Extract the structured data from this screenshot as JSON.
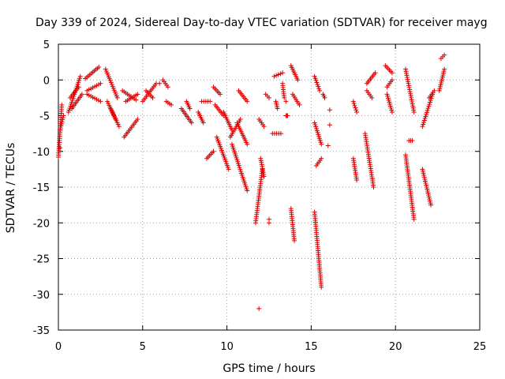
{
  "chart_data": {
    "type": "scatter",
    "title": "Day 339 of 2024, Sidereal Day-to-day VTEC variation (SDTVAR) for receiver mayg",
    "xlabel": "GPS time / hours",
    "ylabel": "SDTVAR / TECUs",
    "xlim": [
      0,
      25
    ],
    "ylim": [
      -35,
      5
    ],
    "xticks": [
      0,
      5,
      10,
      15,
      20,
      25
    ],
    "yticks": [
      5,
      0,
      -5,
      -10,
      -15,
      -20,
      -25,
      -30,
      -35
    ],
    "x_tick_labels": [
      "0",
      "5",
      "10",
      "15",
      "20",
      "25"
    ],
    "y_tick_labels": [
      "5",
      "0",
      "-5",
      "-10",
      "-15",
      "-20",
      "-25",
      "-30",
      "-35"
    ],
    "grid": true,
    "marker": "+",
    "color": "#e00000",
    "tracks": [
      {
        "x0": 0.0,
        "y0": -10.8,
        "x1": 0.2,
        "y1": -3.5
      },
      {
        "x0": 0.1,
        "y0": -7.0,
        "x1": 0.3,
        "y1": -5.0
      },
      {
        "x0": 0.6,
        "y0": -4.5,
        "x1": 1.3,
        "y1": 0.5
      },
      {
        "x0": 0.7,
        "y0": -2.5,
        "x1": 1.2,
        "y1": -1.0
      },
      {
        "x0": 0.8,
        "y0": -4.0,
        "x1": 1.4,
        "y1": -2.0
      },
      {
        "x0": 1.6,
        "y0": 0.2,
        "x1": 2.4,
        "y1": 1.8
      },
      {
        "x0": 1.7,
        "y0": -1.5,
        "x1": 2.5,
        "y1": -0.5
      },
      {
        "x0": 1.7,
        "y0": -2.0,
        "x1": 2.5,
        "y1": -3.0
      },
      {
        "x0": 2.8,
        "y0": 1.5,
        "x1": 3.5,
        "y1": -2.5
      },
      {
        "x0": 2.9,
        "y0": -3.0,
        "x1": 3.6,
        "y1": -6.5
      },
      {
        "x0": 3.1,
        "y0": -4.0,
        "x1": 3.4,
        "y1": -5.5
      },
      {
        "x0": 3.8,
        "y0": -1.5,
        "x1": 4.6,
        "y1": -2.8
      },
      {
        "x0": 4.0,
        "y0": -3.0,
        "x1": 4.7,
        "y1": -2.0
      },
      {
        "x0": 3.9,
        "y0": -8.0,
        "x1": 4.7,
        "y1": -5.5
      },
      {
        "x0": 5.0,
        "y0": -3.0,
        "x1": 5.8,
        "y1": -0.5
      },
      {
        "x0": 5.2,
        "y0": -1.5,
        "x1": 5.6,
        "y1": -2.5
      },
      {
        "x0": 6.2,
        "y0": 0.0,
        "x1": 6.5,
        "y1": -1.0
      },
      {
        "x0": 6.4,
        "y0": -3.0,
        "x1": 6.7,
        "y1": -3.5
      },
      {
        "x0": 7.3,
        "y0": -4.0,
        "x1": 7.9,
        "y1": -6.0
      },
      {
        "x0": 7.6,
        "y0": -3.0,
        "x1": 7.8,
        "y1": -4.0
      },
      {
        "x0": 8.3,
        "y0": -4.5,
        "x1": 8.6,
        "y1": -6.0
      },
      {
        "x0": 8.5,
        "y0": -3.0,
        "x1": 9.0,
        "y1": -3.0
      },
      {
        "x0": 8.8,
        "y0": -11.0,
        "x1": 9.2,
        "y1": -10.0
      },
      {
        "x0": 9.2,
        "y0": -1.0,
        "x1": 9.6,
        "y1": -2.0
      },
      {
        "x0": 9.3,
        "y0": -3.5,
        "x1": 9.8,
        "y1": -5.0
      },
      {
        "x0": 9.4,
        "y0": -8.0,
        "x1": 10.1,
        "y1": -12.5
      },
      {
        "x0": 9.8,
        "y0": -4.5,
        "x1": 10.3,
        "y1": -7.0
      },
      {
        "x0": 10.2,
        "y0": -8.0,
        "x1": 10.8,
        "y1": -5.5
      },
      {
        "x0": 10.3,
        "y0": -9.0,
        "x1": 11.2,
        "y1": -15.5
      },
      {
        "x0": 10.6,
        "y0": -6.0,
        "x1": 11.2,
        "y1": -9.0
      },
      {
        "x0": 10.7,
        "y0": -1.5,
        "x1": 11.2,
        "y1": -3.0
      },
      {
        "x0": 11.9,
        "y0": -5.5,
        "x1": 12.2,
        "y1": -6.5
      },
      {
        "x0": 11.7,
        "y0": -20.0,
        "x1": 12.1,
        "y1": -12.5
      },
      {
        "x0": 12.0,
        "y0": -11.0,
        "x1": 12.2,
        "y1": -13.5
      },
      {
        "x0": 12.3,
        "y0": -2.0,
        "x1": 12.5,
        "y1": -2.5
      },
      {
        "x0": 12.8,
        "y0": 0.5,
        "x1": 13.3,
        "y1": 1.0
      },
      {
        "x0": 12.7,
        "y0": -7.5,
        "x1": 13.2,
        "y1": -7.5
      },
      {
        "x0": 12.9,
        "y0": -3.0,
        "x1": 13.0,
        "y1": -4.0
      },
      {
        "x0": 13.3,
        "y0": -0.5,
        "x1": 13.4,
        "y1": -2.5
      },
      {
        "x0": 13.8,
        "y0": 2.0,
        "x1": 14.2,
        "y1": 0.0
      },
      {
        "x0": 13.9,
        "y0": -2.0,
        "x1": 14.3,
        "y1": -3.5
      },
      {
        "x0": 13.8,
        "y0": -18.0,
        "x1": 14.0,
        "y1": -22.5
      },
      {
        "x0": 13.5,
        "y0": -5.0,
        "x1": 13.6,
        "y1": -5.0
      },
      {
        "x0": 15.2,
        "y0": 0.5,
        "x1": 15.5,
        "y1": -1.5
      },
      {
        "x0": 15.2,
        "y0": -6.0,
        "x1": 15.6,
        "y1": -9.0
      },
      {
        "x0": 15.2,
        "y0": -18.5,
        "x1": 15.6,
        "y1": -29.0
      },
      {
        "x0": 15.3,
        "y0": -12.0,
        "x1": 15.6,
        "y1": -11.0
      },
      {
        "x0": 15.7,
        "y0": -2.0,
        "x1": 15.8,
        "y1": -2.5
      },
      {
        "x0": 17.5,
        "y0": -3.0,
        "x1": 17.7,
        "y1": -4.5
      },
      {
        "x0": 17.5,
        "y0": -11.0,
        "x1": 17.7,
        "y1": -14.0
      },
      {
        "x0": 18.2,
        "y0": -7.5,
        "x1": 18.7,
        "y1": -15.0
      },
      {
        "x0": 18.3,
        "y0": -1.5,
        "x1": 18.6,
        "y1": -2.5
      },
      {
        "x0": 18.3,
        "y0": -0.5,
        "x1": 18.8,
        "y1": 1.0
      },
      {
        "x0": 19.4,
        "y0": 2.0,
        "x1": 19.8,
        "y1": 1.0
      },
      {
        "x0": 19.5,
        "y0": -1.0,
        "x1": 19.8,
        "y1": 0.0
      },
      {
        "x0": 19.5,
        "y0": -2.0,
        "x1": 19.8,
        "y1": -4.5
      },
      {
        "x0": 20.6,
        "y0": -10.5,
        "x1": 21.1,
        "y1": -19.5
      },
      {
        "x0": 20.6,
        "y0": 1.5,
        "x1": 21.1,
        "y1": -4.5
      },
      {
        "x0": 20.8,
        "y0": -8.5,
        "x1": 21.0,
        "y1": -8.5
      },
      {
        "x0": 21.6,
        "y0": -6.5,
        "x1": 22.2,
        "y1": -2.0
      },
      {
        "x0": 21.6,
        "y0": -12.5,
        "x1": 22.1,
        "y1": -17.5
      },
      {
        "x0": 22.0,
        "y0": -2.5,
        "x1": 22.3,
        "y1": -1.5
      },
      {
        "x0": 22.6,
        "y0": -1.5,
        "x1": 22.9,
        "y1": 1.5
      },
      {
        "x0": 22.7,
        "y0": 3.0,
        "x1": 22.9,
        "y1": 3.5
      }
    ],
    "points": [
      {
        "x": 0.1,
        "y": -9.5
      },
      {
        "x": 6.0,
        "y": -0.5
      },
      {
        "x": 12.5,
        "y": -20.0
      },
      {
        "x": 12.5,
        "y": -19.5
      },
      {
        "x": 11.9,
        "y": -32.0
      },
      {
        "x": 16.1,
        "y": -6.3
      },
      {
        "x": 16.0,
        "y": -9.2
      },
      {
        "x": 16.1,
        "y": -4.2
      },
      {
        "x": 13.5,
        "y": -3.0
      }
    ]
  }
}
